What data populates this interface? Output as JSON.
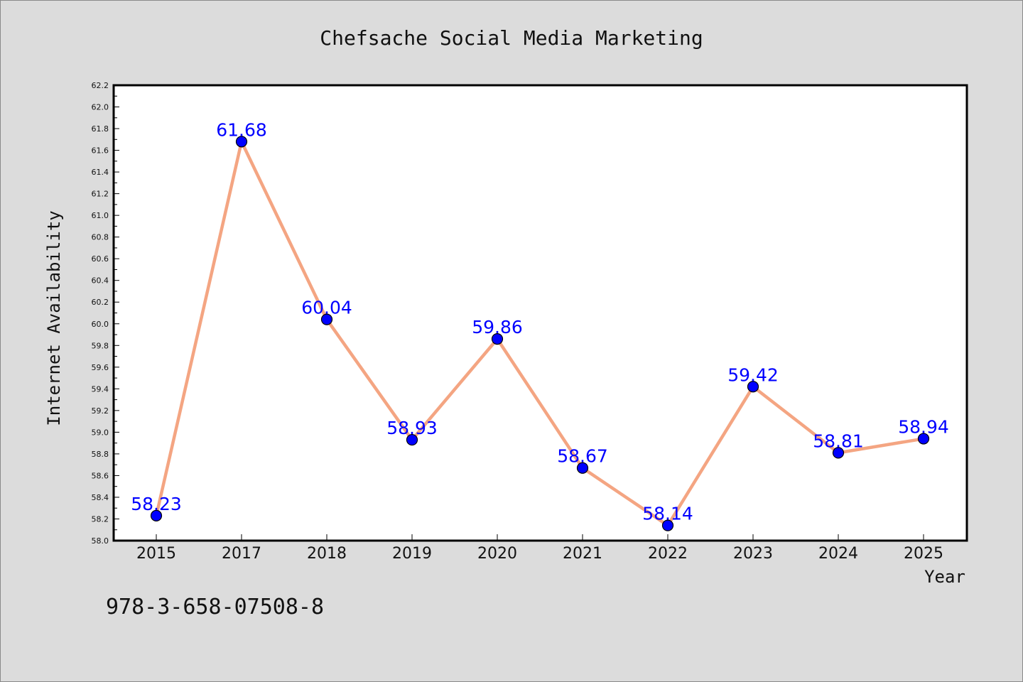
{
  "footer_text": "978-3-658-07508-8",
  "chart_data": {
    "type": "line",
    "title": "Chefsache Social Media Marketing",
    "xlabel": "Year",
    "ylabel": "Internet Availability",
    "categories": [
      "2015",
      "2017",
      "2018",
      "2019",
      "2020",
      "2021",
      "2022",
      "2023",
      "2024",
      "2025"
    ],
    "values": [
      58.23,
      61.68,
      60.04,
      58.93,
      59.86,
      58.67,
      58.14,
      59.42,
      58.81,
      58.94
    ],
    "ylim": [
      58.0,
      62.2
    ],
    "ytick_step": 0.2,
    "grid": false,
    "legend": "none",
    "colors": {
      "line": "#f4a582",
      "marker": "#0000ff",
      "data_label": "#0000ff",
      "background": "#dcdcdc",
      "plot_area": "#ffffff"
    }
  }
}
